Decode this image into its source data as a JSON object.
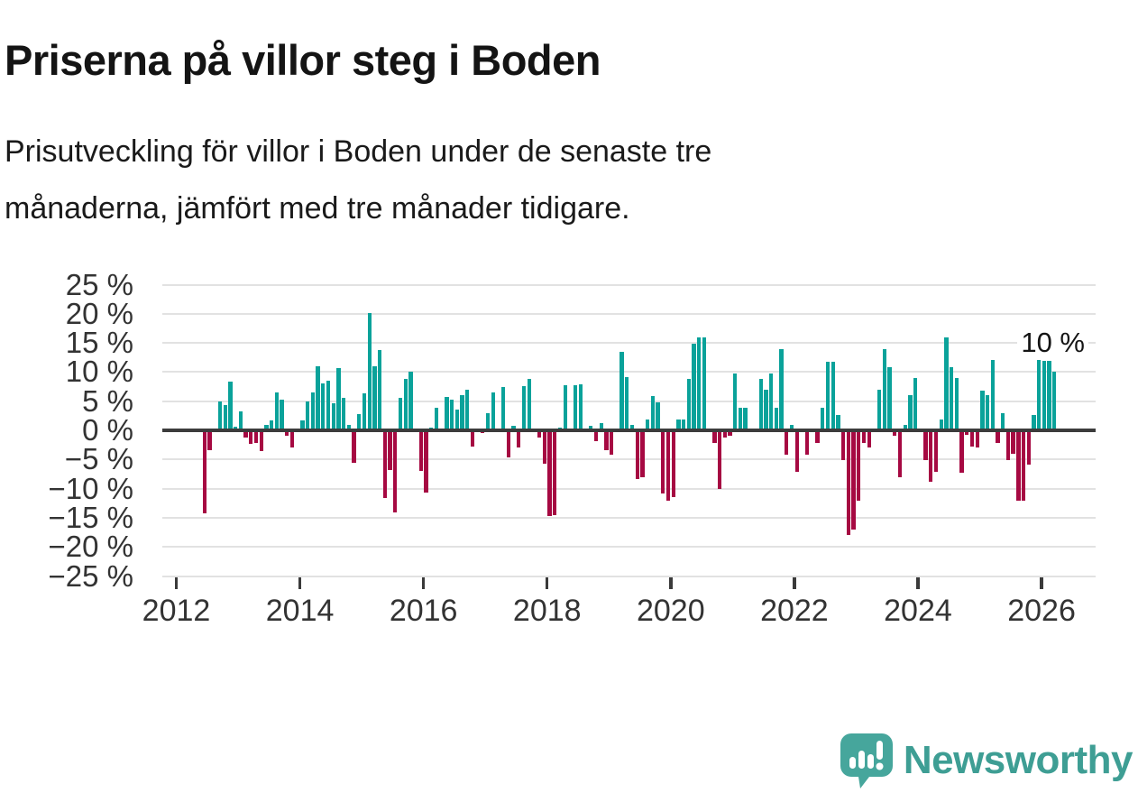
{
  "header": {
    "title": "Priserna på villor steg i Boden",
    "subtitle_lines": [
      "Prisutveckling för villor i Boden under de senaste tre",
      "månaderna, jämfört med tre månader tidigare."
    ]
  },
  "chart_data": {
    "type": "bar",
    "title": "Priserna på villor steg i Boden",
    "subtitle": "Prisutveckling för villor i Boden under de senaste tre månaderna, jämfört med tre månader tidigare.",
    "unit": "%",
    "ylim": [
      -25,
      25
    ],
    "grid": true,
    "y_tick_values": [
      25,
      20,
      15,
      10,
      5,
      0,
      -5,
      -10,
      -15,
      -20,
      -25
    ],
    "y_tick_labels": [
      "25 %",
      "20 %",
      "15 %",
      "10 %",
      "5 %",
      "0 %",
      "−5 %",
      "−10 %",
      "−15 %",
      "−20 %",
      "−25 %"
    ],
    "x_tick_years": [
      2012,
      2014,
      2016,
      2018,
      2020,
      2022,
      2024,
      2026
    ],
    "x_tick_labels": [
      "2012",
      "2014",
      "2016",
      "2018",
      "2020",
      "2022",
      "2024",
      "2026"
    ],
    "month_offset_base": "2012-01",
    "annotation": {
      "text": "10 %",
      "value": 10
    },
    "colors": {
      "positive": "#0aa29a",
      "negative": "#a60942"
    },
    "points": [
      [
        5,
        -14.3
      ],
      [
        6,
        -3.4
      ],
      [
        8,
        4.9
      ],
      [
        9,
        4.3
      ],
      [
        10,
        8.4
      ],
      [
        11,
        0.6
      ],
      [
        12,
        3.3
      ],
      [
        13,
        -1.2
      ],
      [
        14,
        -2.3
      ],
      [
        15,
        -2.2
      ],
      [
        16,
        -3.6
      ],
      [
        17,
        1.0
      ],
      [
        18,
        1.7
      ],
      [
        19,
        6.5
      ],
      [
        20,
        5.3
      ],
      [
        21,
        -0.9
      ],
      [
        22,
        -3.0
      ],
      [
        24,
        1.7
      ],
      [
        25,
        4.9
      ],
      [
        26,
        6.5
      ],
      [
        27,
        11.0
      ],
      [
        28,
        8.1
      ],
      [
        29,
        8.5
      ],
      [
        30,
        4.7
      ],
      [
        31,
        10.7
      ],
      [
        32,
        5.5
      ],
      [
        33,
        1.0
      ],
      [
        34,
        -5.6
      ],
      [
        35,
        2.8
      ],
      [
        36,
        6.3
      ],
      [
        37,
        20.1
      ],
      [
        38,
        11.0
      ],
      [
        39,
        13.8
      ],
      [
        40,
        -11.6
      ],
      [
        41,
        -6.8
      ],
      [
        42,
        -14.1
      ],
      [
        43,
        5.6
      ],
      [
        44,
        8.9
      ],
      [
        45,
        10.0
      ],
      [
        47,
        -6.9
      ],
      [
        48,
        -10.7
      ],
      [
        49,
        0.4
      ],
      [
        50,
        3.9
      ],
      [
        52,
        5.8
      ],
      [
        53,
        5.3
      ],
      [
        54,
        3.5
      ],
      [
        55,
        6.1
      ],
      [
        56,
        7.0
      ],
      [
        57,
        -2.8
      ],
      [
        59,
        -0.5
      ],
      [
        60,
        3.0
      ],
      [
        61,
        6.5
      ],
      [
        63,
        7.4
      ],
      [
        64,
        -4.7
      ],
      [
        65,
        0.7
      ],
      [
        66,
        -2.9
      ],
      [
        67,
        7.6
      ],
      [
        68,
        8.9
      ],
      [
        70,
        -1.3
      ],
      [
        71,
        -5.7
      ],
      [
        72,
        -14.7
      ],
      [
        73,
        -14.6
      ],
      [
        74,
        0.4
      ],
      [
        75,
        7.8
      ],
      [
        77,
        7.8
      ],
      [
        78,
        7.9
      ],
      [
        80,
        0.8
      ],
      [
        81,
        -1.9
      ],
      [
        82,
        1.2
      ],
      [
        83,
        -3.4
      ],
      [
        84,
        -4.2
      ],
      [
        86,
        13.4
      ],
      [
        87,
        9.1
      ],
      [
        88,
        0.9
      ],
      [
        89,
        -8.3
      ],
      [
        90,
        -8.0
      ],
      [
        91,
        1.8
      ],
      [
        92,
        5.9
      ],
      [
        93,
        4.8
      ],
      [
        94,
        -10.9
      ],
      [
        95,
        -12.1
      ],
      [
        96,
        -11.4
      ],
      [
        97,
        1.8
      ],
      [
        98,
        1.8
      ],
      [
        99,
        8.9
      ],
      [
        100,
        14.8
      ],
      [
        101,
        16.0
      ],
      [
        102,
        15.9
      ],
      [
        104,
        -2.2
      ],
      [
        105,
        -10.1
      ],
      [
        106,
        -1.2
      ],
      [
        107,
        -0.9
      ],
      [
        108,
        9.7
      ],
      [
        109,
        3.9
      ],
      [
        110,
        3.9
      ],
      [
        113,
        8.8
      ],
      [
        114,
        6.9
      ],
      [
        115,
        9.8
      ],
      [
        116,
        3.9
      ],
      [
        117,
        13.9
      ],
      [
        118,
        -4.2
      ],
      [
        119,
        0.9
      ],
      [
        120,
        -7.1
      ],
      [
        122,
        -4.2
      ],
      [
        124,
        -2.1
      ],
      [
        125,
        3.9
      ],
      [
        126,
        11.8
      ],
      [
        127,
        11.8
      ],
      [
        128,
        2.7
      ],
      [
        129,
        -5.1
      ],
      [
        130,
        -17.9
      ],
      [
        131,
        -17.0
      ],
      [
        132,
        -12.0
      ],
      [
        133,
        -2.2
      ],
      [
        134,
        -2.9
      ],
      [
        136,
        6.9
      ],
      [
        137,
        13.9
      ],
      [
        138,
        10.8
      ],
      [
        139,
        -0.9
      ],
      [
        140,
        -8.1
      ],
      [
        141,
        0.9
      ],
      [
        142,
        6.0
      ],
      [
        143,
        9.0
      ],
      [
        145,
        -5.1
      ],
      [
        146,
        -8.8
      ],
      [
        147,
        -7.1
      ],
      [
        148,
        1.8
      ],
      [
        149,
        16.0
      ],
      [
        150,
        10.9
      ],
      [
        151,
        9.0
      ],
      [
        152,
        -7.3
      ],
      [
        153,
        -0.8
      ],
      [
        154,
        -2.8
      ],
      [
        155,
        -3.0
      ],
      [
        156,
        6.8
      ],
      [
        157,
        6.0
      ],
      [
        158,
        12.0
      ],
      [
        159,
        -2.2
      ],
      [
        160,
        2.9
      ],
      [
        161,
        -5.1
      ],
      [
        162,
        -4.1
      ],
      [
        163,
        -12.1
      ],
      [
        164,
        -12.0
      ],
      [
        165,
        -5.9
      ],
      [
        166,
        2.7
      ],
      [
        167,
        12.0
      ],
      [
        168,
        11.9
      ],
      [
        169,
        11.9
      ],
      [
        170,
        10.0
      ]
    ]
  },
  "footer": {
    "brand": "Newsworthy",
    "logo_icon": "bar-chart-speech-bubble-icon",
    "logo_color": "#46a69c"
  }
}
